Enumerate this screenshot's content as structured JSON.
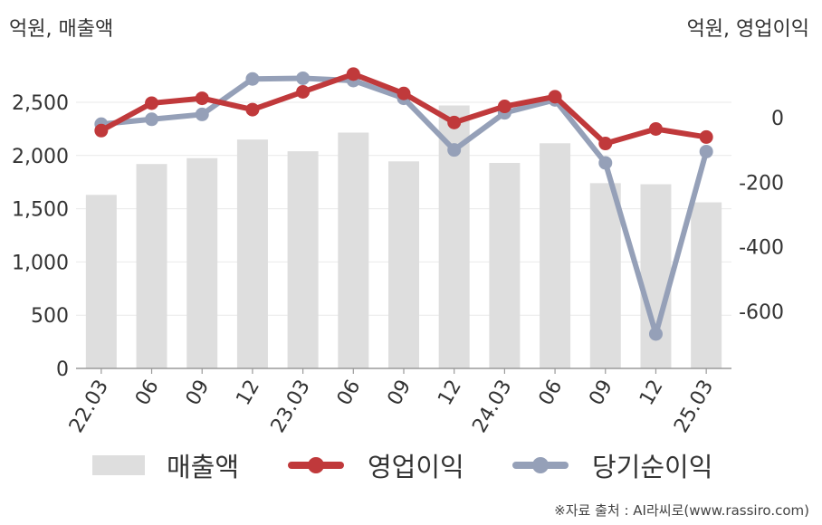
{
  "left_unit": "억원, 매출액",
  "right_unit": "억원, 영업이익",
  "source": "※자료 출처 : AI라씨로(www.rassiro.com)",
  "legend": {
    "revenue": "매출액",
    "operating": "영업이익",
    "net": "당기순이익"
  },
  "colors": {
    "revenue": "#dedede",
    "operating": "#c0393b",
    "net": "#95a0b8",
    "grid": "#e9e9e9",
    "axis": "#9a9a9a"
  },
  "chart_data": {
    "type": "bar+line",
    "categories": [
      "22.03",
      "06",
      "09",
      "12",
      "23.03",
      "06",
      "09",
      "12",
      "24.03",
      "06",
      "09",
      "12",
      "25.03"
    ],
    "y_left": {
      "ticks": [
        0,
        500,
        1000,
        1500,
        2000,
        2500
      ],
      "tick_labels": [
        "0",
        "500",
        "1,000",
        "1,500",
        "2,000",
        "2,500"
      ],
      "range": [
        0,
        2750
      ]
    },
    "y_right": {
      "ticks": [
        0,
        -200,
        -400,
        -600
      ],
      "tick_labels": [
        "0",
        "-200",
        "-400",
        "-600"
      ],
      "range": [
        -780,
        112
      ]
    },
    "series": [
      {
        "name": "매출액",
        "type": "bar",
        "axis": "left",
        "values": [
          1630,
          1920,
          1975,
          2150,
          2040,
          2215,
          1945,
          2470,
          1930,
          2115,
          1740,
          1730,
          1560
        ]
      },
      {
        "name": "영업이익",
        "type": "line",
        "axis": "right",
        "values": [
          -40,
          45,
          60,
          25,
          80,
          135,
          75,
          -15,
          35,
          65,
          -80,
          -35,
          -60
        ]
      },
      {
        "name": "당기순이익",
        "type": "line",
        "axis": "right",
        "values": [
          -20,
          -5,
          10,
          120,
          122,
          115,
          60,
          -100,
          15,
          55,
          -140,
          -670,
          -105
        ]
      }
    ],
    "grid": true,
    "legend_position": "bottom"
  }
}
